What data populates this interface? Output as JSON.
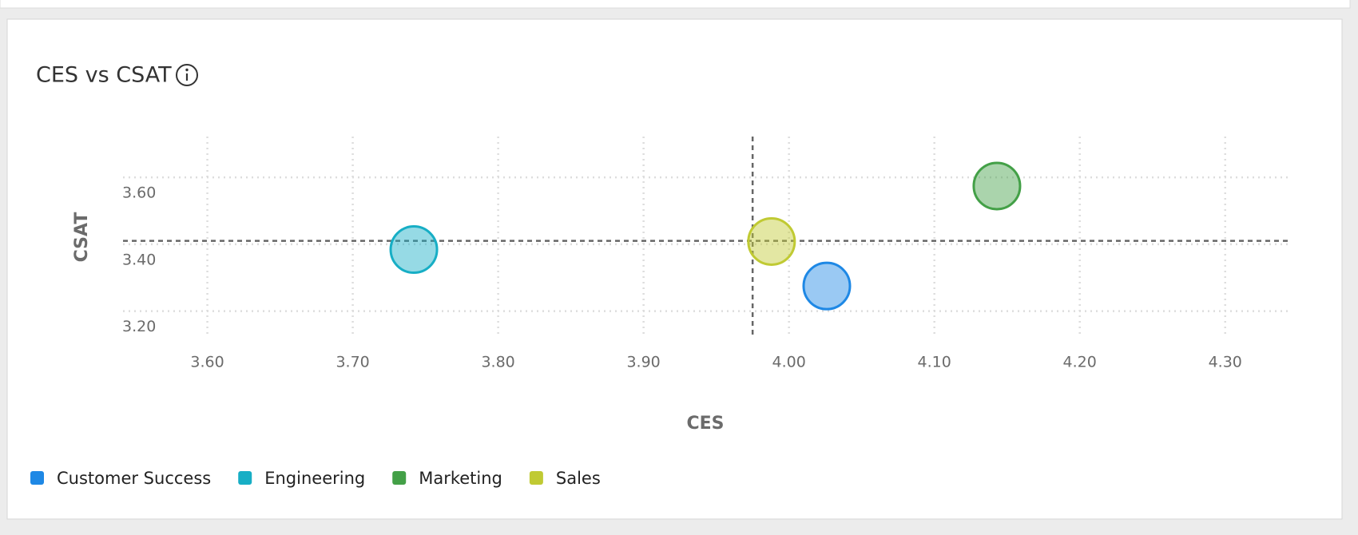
{
  "chart_data": {
    "type": "scatter",
    "title": "CES vs CSAT",
    "x_label": "CES",
    "y_label": "CSAT",
    "xlim": [
      3.542,
      4.343
    ],
    "ylim": [
      3.125,
      3.722
    ],
    "xticks": [
      {
        "value": 3.6,
        "label": "3.60"
      },
      {
        "value": 3.7,
        "label": "3.70"
      },
      {
        "value": 3.8,
        "label": "3.80"
      },
      {
        "value": 3.9,
        "label": "3.90"
      },
      {
        "value": 4.0,
        "label": "4.00"
      },
      {
        "value": 4.1,
        "label": "4.10"
      },
      {
        "value": 4.2,
        "label": "4.20"
      },
      {
        "value": 4.3,
        "label": "4.30"
      }
    ],
    "yticks": [
      {
        "value": 3.2,
        "label": "3.20"
      },
      {
        "value": 3.4,
        "label": "3.40"
      },
      {
        "value": 3.6,
        "label": "3.60"
      }
    ],
    "grid": true,
    "reference_lines": {
      "x": 3.975,
      "y": 3.41
    },
    "series": [
      {
        "name": "Customer Success",
        "color": "#1e88e5",
        "x": [
          4.026
        ],
        "values": [
          3.275
        ]
      },
      {
        "name": "Engineering",
        "color": "#17aec5",
        "x": [
          3.742
        ],
        "values": [
          3.384
        ]
      },
      {
        "name": "Marketing",
        "color": "#43a047",
        "x": [
          4.143
        ],
        "values": [
          3.574
        ]
      },
      {
        "name": "Sales",
        "color": "#c0ca33",
        "x": [
          3.988
        ],
        "values": [
          3.408
        ]
      }
    ]
  }
}
